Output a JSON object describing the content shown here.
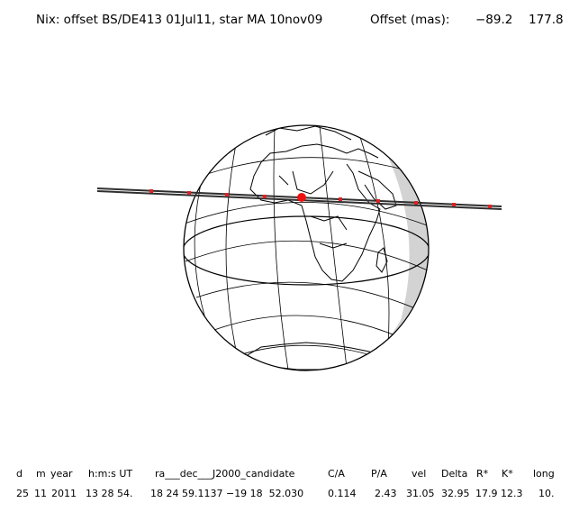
{
  "header": {
    "title": "Nix: offset BS/DE413 01Jul11, star MA 10nov09",
    "offset_label": "Offset (mas):",
    "offset_x": "−89.2",
    "offset_y": "177.8"
  },
  "table": {
    "headers": [
      "d",
      "m",
      "year",
      "h:m:s UT",
      "ra___dec___J2000_candidate",
      "C/A",
      "P/A",
      "vel",
      "Delta",
      "R*",
      "K*",
      "long"
    ],
    "row": [
      "25",
      "11",
      "2011",
      "13 28 54.",
      "18 24 59.1137 −19 18  52.030",
      "0.114",
      "2.43",
      "31.05",
      "32.95",
      "17.9",
      "12.3",
      "10."
    ]
  },
  "map": {
    "colors": {
      "night_side": "#d3d3d3",
      "track": "#2f2f2f",
      "track_marks": "#dd2222",
      "center_point": "#ee1111"
    }
  }
}
